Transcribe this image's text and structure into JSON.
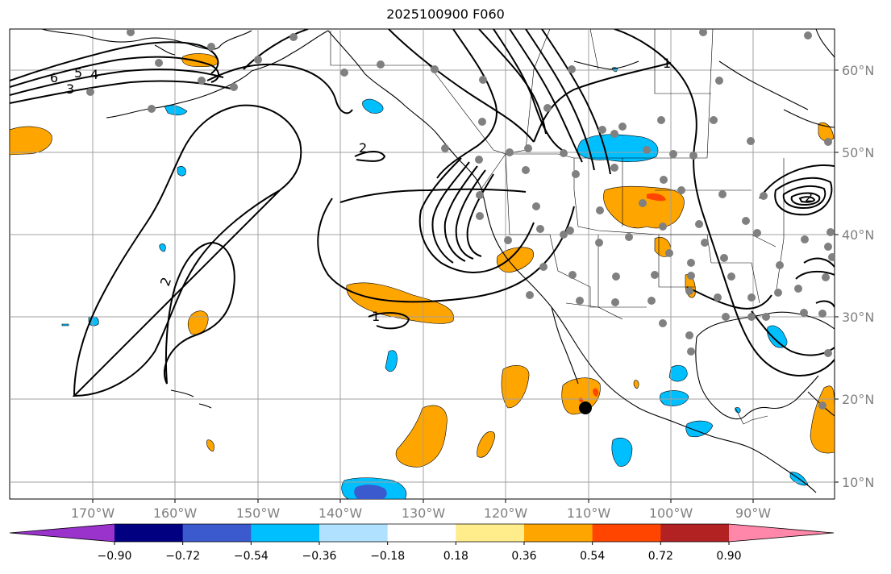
{
  "title": "2025100900 F060",
  "colors": {
    "contour": "#000000",
    "coast": "#000000",
    "grid": "#a0a0a0",
    "station": "#808080",
    "marker": "#000000",
    "tick_text": "#808080"
  },
  "map": {
    "longitude_ticks": [
      "170°W",
      "160°W",
      "150°W",
      "140°W",
      "130°W",
      "120°W",
      "110°W",
      "100°W",
      "90°W"
    ],
    "latitude_ticks": [
      "60°N",
      "50°N",
      "40°N",
      "30°N",
      "20°N",
      "10°N"
    ],
    "contour_labels": [
      "6",
      "5",
      "4",
      "3",
      "2",
      "2",
      "1",
      "1",
      "2"
    ],
    "marker": {
      "label": "storm-center",
      "lon": -110.0,
      "lat": 19.2
    }
  },
  "colorbar": {
    "bins": [
      {
        "color": "#9933cc"
      },
      {
        "color": "#000080"
      },
      {
        "color": "#3a5acd"
      },
      {
        "color": "#00bfff"
      },
      {
        "color": "#b0e2ff"
      },
      {
        "color": "#ffffff"
      },
      {
        "color": "#ffec8b"
      },
      {
        "color": "#ffa500"
      },
      {
        "color": "#ff4500"
      },
      {
        "color": "#b22222"
      },
      {
        "color": "#ff88aa"
      }
    ],
    "tick_labels": [
      "−0.90",
      "−0.72",
      "−0.54",
      "−0.36",
      "−0.18",
      "0.18",
      "0.36",
      "0.54",
      "0.72",
      "0.90"
    ]
  }
}
